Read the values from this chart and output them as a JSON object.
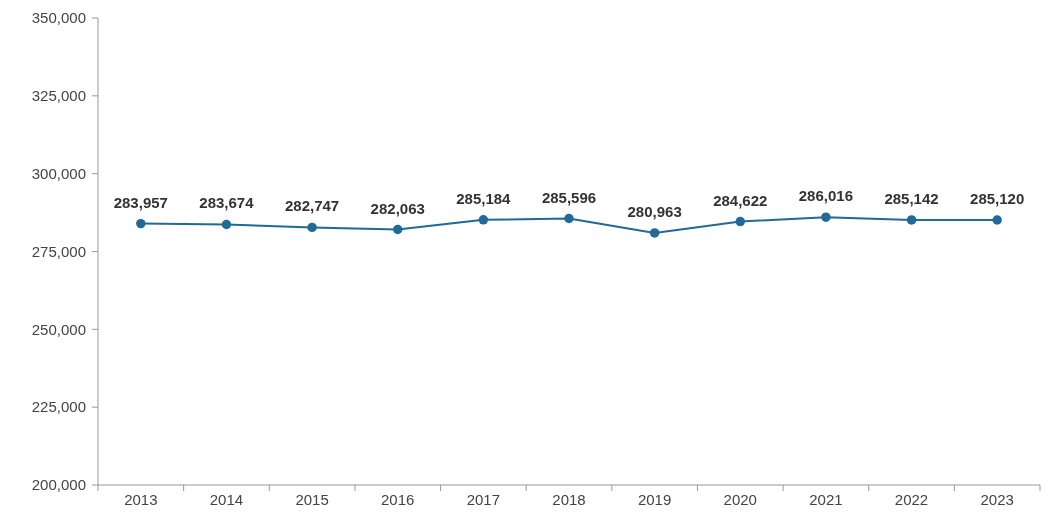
{
  "chart_data": {
    "type": "line",
    "categories": [
      "2013",
      "2014",
      "2015",
      "2016",
      "2017",
      "2018",
      "2019",
      "2020",
      "2021",
      "2022",
      "2023"
    ],
    "series": [
      {
        "color": "#1f6a96",
        "values": [
          283957,
          283674,
          282747,
          282063,
          285184,
          285596,
          280963,
          284622,
          286016,
          285142,
          285120
        ],
        "value_labels": [
          "283,957",
          "283,674",
          "282,747",
          "282,063",
          "285,184",
          "285,596",
          "280,963",
          "284,622",
          "286,016",
          "285,142",
          "285,120"
        ]
      }
    ],
    "ylim": [
      200000,
      350000
    ],
    "yticks": [
      {
        "value": 200000,
        "label": "200,000"
      },
      {
        "value": 225000,
        "label": "225,000"
      },
      {
        "value": 250000,
        "label": "250,000"
      },
      {
        "value": 275000,
        "label": "275,000"
      },
      {
        "value": 300000,
        "label": "300,000"
      },
      {
        "value": 325000,
        "label": "325,000"
      },
      {
        "value": 350000,
        "label": "350,000"
      }
    ],
    "marker": "circle",
    "grid": false
  }
}
